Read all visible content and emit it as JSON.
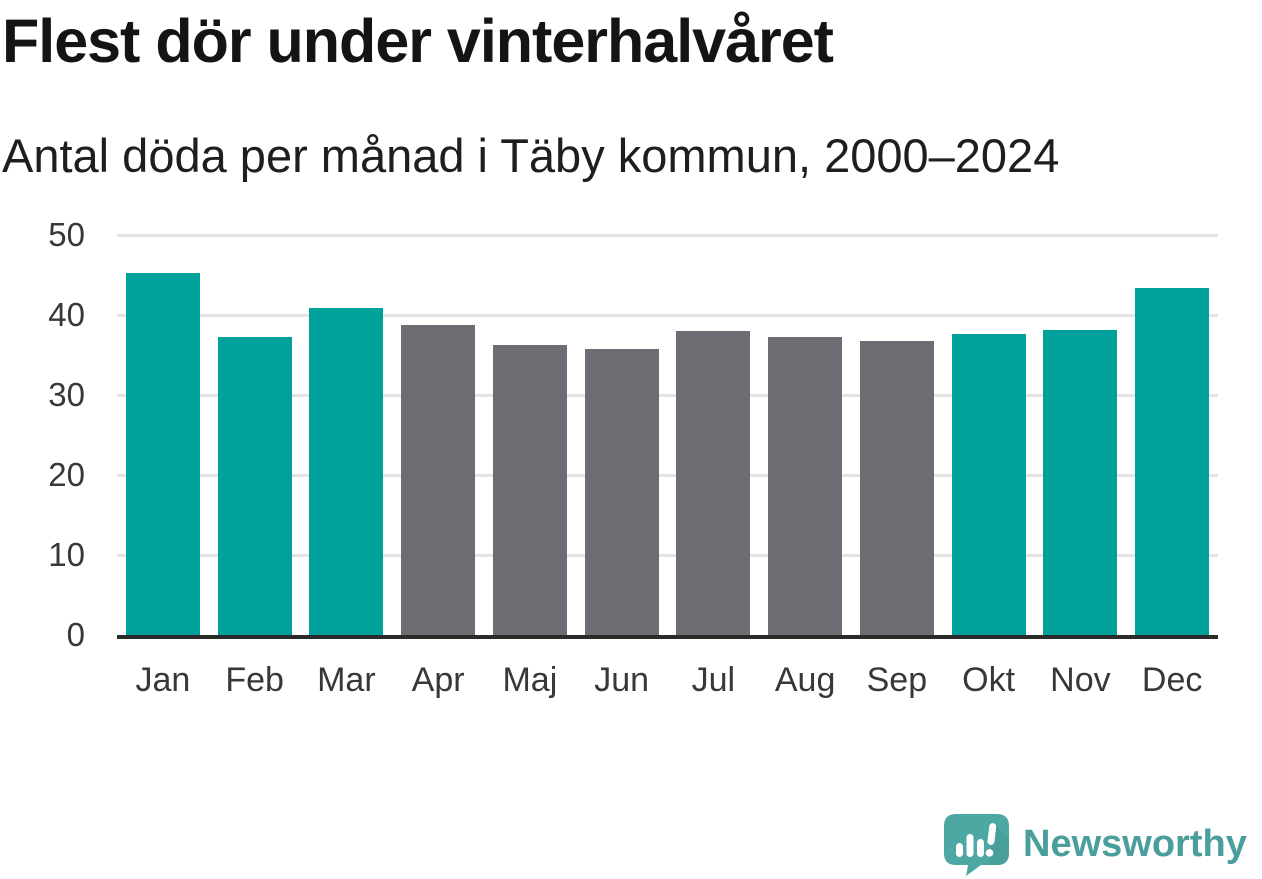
{
  "chart_data": {
    "type": "bar",
    "title": "Flest dör under vinterhalvåret",
    "subtitle": "Antal döda per månad i Täby kommun, 2000–2024",
    "categories": [
      "Jan",
      "Feb",
      "Mar",
      "Apr",
      "Maj",
      "Jun",
      "Jul",
      "Aug",
      "Sep",
      "Okt",
      "Nov",
      "Dec"
    ],
    "values": [
      45.3,
      37.3,
      40.9,
      38.8,
      36.3,
      35.8,
      38.0,
      37.2,
      36.8,
      37.6,
      38.1,
      43.4
    ],
    "bar_colors": [
      "#00a19a",
      "#00a19a",
      "#00a19a",
      "#6d6d73",
      "#6d6d73",
      "#6d6d73",
      "#6d6d73",
      "#6d6d73",
      "#6d6d73",
      "#00a19a",
      "#00a19a",
      "#00a19a"
    ],
    "color_legend": {
      "winter_months": "#00a19a",
      "summer_months": "#6d6d73"
    },
    "xlabel": "",
    "ylabel": "",
    "ylim": [
      0,
      50
    ],
    "yticks": [
      0,
      10,
      20,
      30,
      40,
      50
    ],
    "grid": true,
    "legend_position": "none",
    "grid_color": "#e3e3e3",
    "axis_color": "#2b2b2b",
    "tick_text_color": "#383838"
  },
  "branding": {
    "logo_text": "Newsworthy",
    "logo_mark": "speech-bubble-bar-chart-icon",
    "logo_color": "#4a9e9b"
  }
}
